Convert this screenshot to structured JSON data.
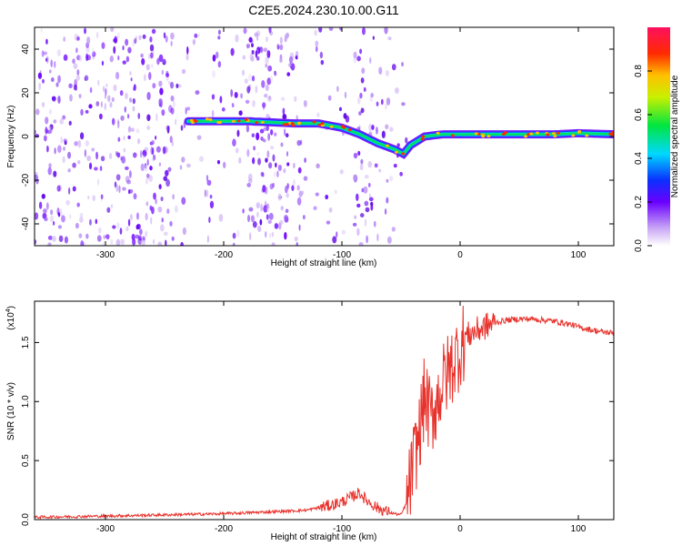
{
  "title": "C2E5.2024.230.10.00.G11",
  "chart_data": [
    {
      "type": "heatmap",
      "xlabel": "Height of straight line (km)",
      "ylabel": "Frequency (Hz)",
      "xlim": [
        -360,
        130
      ],
      "ylim": [
        -50,
        50
      ],
      "xticks": [
        -300,
        -200,
        -100,
        0,
        100
      ],
      "yticks": [
        -40,
        -20,
        0,
        20,
        40
      ],
      "colorbar": {
        "label": "Normalized spectral amplitude",
        "range": [
          0,
          1
        ],
        "ticks": [
          0.0,
          0.2,
          0.4,
          0.6,
          0.8
        ]
      },
      "ridge": [
        [
          -230,
          7
        ],
        [
          -200,
          7
        ],
        [
          -180,
          7
        ],
        [
          -160,
          6.5
        ],
        [
          -140,
          6
        ],
        [
          -120,
          6
        ],
        [
          -100,
          4
        ],
        [
          -85,
          1
        ],
        [
          -70,
          -3
        ],
        [
          -55,
          -6
        ],
        [
          -48,
          -8
        ],
        [
          -42,
          -4
        ],
        [
          -30,
          0
        ],
        [
          -15,
          1
        ],
        [
          0,
          1
        ],
        [
          20,
          1
        ],
        [
          50,
          1
        ],
        [
          80,
          1
        ],
        [
          100,
          1.5
        ],
        [
          130,
          1
        ]
      ]
    },
    {
      "type": "line",
      "xlabel": "Height of straight line (km)",
      "ylabel": "SNR (10 * v/v)",
      "scale_note": "(x10",
      "scale_exp": "4",
      "xlim": [
        -360,
        130
      ],
      "ylim": [
        0,
        1.85
      ],
      "xticks": [
        -300,
        -200,
        -100,
        0,
        100
      ],
      "yticks": [
        0.0,
        0.5,
        1.0,
        1.5
      ],
      "yticklabels": [
        "0.0",
        "0.5",
        "1.0",
        "1.5"
      ],
      "series": [
        {
          "color": "#e8322c",
          "points": [
            [
              -360,
              0.02
            ],
            [
              -300,
              0.03
            ],
            [
              -250,
              0.04
            ],
            [
              -200,
              0.05
            ],
            [
              -150,
              0.07
            ],
            [
              -130,
              0.08
            ],
            [
              -110,
              0.12
            ],
            [
              -100,
              0.15
            ],
            [
              -90,
              0.2
            ],
            [
              -85,
              0.23
            ],
            [
              -80,
              0.17
            ],
            [
              -70,
              0.1
            ],
            [
              -60,
              0.06
            ],
            [
              -50,
              0.04
            ],
            [
              -45,
              0.15
            ],
            [
              -40,
              0.45
            ],
            [
              -35,
              0.7
            ],
            [
              -30,
              1.05
            ],
            [
              -25,
              0.85
            ],
            [
              -20,
              1.0
            ],
            [
              -15,
              1.15
            ],
            [
              -10,
              1.25
            ],
            [
              -5,
              1.35
            ],
            [
              0,
              1.45
            ],
            [
              5,
              1.55
            ],
            [
              10,
              1.58
            ],
            [
              20,
              1.63
            ],
            [
              30,
              1.67
            ],
            [
              40,
              1.69
            ],
            [
              50,
              1.7
            ],
            [
              60,
              1.7
            ],
            [
              70,
              1.69
            ],
            [
              80,
              1.68
            ],
            [
              90,
              1.66
            ],
            [
              95,
              1.65
            ],
            [
              100,
              1.63
            ],
            [
              110,
              1.61
            ],
            [
              120,
              1.59
            ],
            [
              130,
              1.58
            ]
          ]
        }
      ]
    }
  ]
}
